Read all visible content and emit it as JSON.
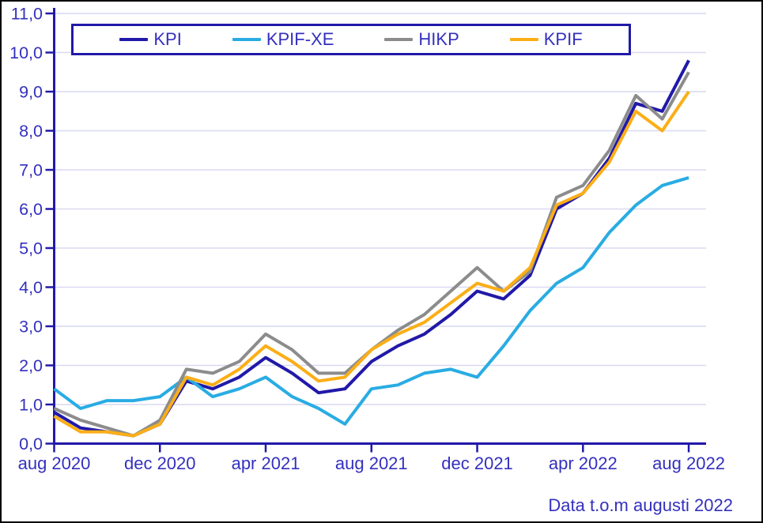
{
  "chart_data": {
    "type": "line",
    "title": "",
    "xlabel": "",
    "ylabel": "",
    "x": [
      "aug 2020",
      "sep 2020",
      "okt 2020",
      "nov 2020",
      "dec 2020",
      "jan 2021",
      "feb 2021",
      "mar 2021",
      "apr 2021",
      "maj 2021",
      "jun 2021",
      "jul 2021",
      "aug 2021",
      "sep 2021",
      "okt 2021",
      "nov 2021",
      "dec 2021",
      "jan 2022",
      "feb 2022",
      "mar 2022",
      "apr 2022",
      "maj 2022",
      "jun 2022",
      "jul 2022",
      "aug 2022"
    ],
    "x_axis": {
      "tick_labels": [
        "aug 2020",
        "dec 2020",
        "apr 2021",
        "aug 2021",
        "dec 2021",
        "apr 2022",
        "aug 2022"
      ],
      "tick_month_indices": [
        0,
        4,
        8,
        12,
        16,
        20,
        24
      ]
    },
    "y_axis": {
      "min": 0,
      "max": 11,
      "step": 1,
      "tick_labels": [
        "0,0",
        "1,0",
        "2,0",
        "3,0",
        "4,0",
        "5,0",
        "6,0",
        "7,0",
        "8,0",
        "9,0",
        "10,0",
        "11,0"
      ]
    },
    "grid": true,
    "legend_position": "top",
    "series": [
      {
        "name": "KPI",
        "color": "#2119A8",
        "values": [
          0.8,
          0.4,
          0.3,
          0.2,
          0.5,
          1.6,
          1.4,
          1.7,
          2.2,
          1.8,
          1.3,
          1.4,
          2.1,
          2.5,
          2.8,
          3.3,
          3.9,
          3.7,
          4.3,
          6.0,
          6.4,
          7.3,
          8.7,
          8.5,
          9.8
        ]
      },
      {
        "name": "KPIF-XE",
        "color": "#29ACE3",
        "values": [
          1.4,
          0.9,
          1.1,
          1.1,
          1.2,
          1.7,
          1.2,
          1.4,
          1.7,
          1.2,
          0.9,
          0.5,
          1.4,
          1.5,
          1.8,
          1.9,
          1.7,
          2.5,
          3.4,
          4.1,
          4.5,
          5.4,
          6.1,
          6.6,
          6.8
        ]
      },
      {
        "name": "HIKP",
        "color": "#8C8C8C",
        "values": [
          0.9,
          0.6,
          0.4,
          0.2,
          0.6,
          1.9,
          1.8,
          2.1,
          2.8,
          2.4,
          1.8,
          1.8,
          2.4,
          2.9,
          3.3,
          3.9,
          4.5,
          3.9,
          4.4,
          6.3,
          6.6,
          7.5,
          8.9,
          8.3,
          9.5
        ]
      },
      {
        "name": "KPIF",
        "color": "#FBAE17",
        "values": [
          0.7,
          0.3,
          0.3,
          0.2,
          0.5,
          1.7,
          1.5,
          1.9,
          2.5,
          2.1,
          1.6,
          1.7,
          2.4,
          2.8,
          3.1,
          3.6,
          4.1,
          3.9,
          4.5,
          6.1,
          6.4,
          7.2,
          8.5,
          8.0,
          9.0
        ]
      }
    ]
  },
  "footnote": "Data t.o.m augusti 2022",
  "colors": {
    "axis": "#2119A8",
    "text": "#3430BE",
    "grid": "#D9D9F2",
    "legend_border": "#2119A8",
    "background": "#FFFFFF",
    "frame_border": "#000000"
  }
}
